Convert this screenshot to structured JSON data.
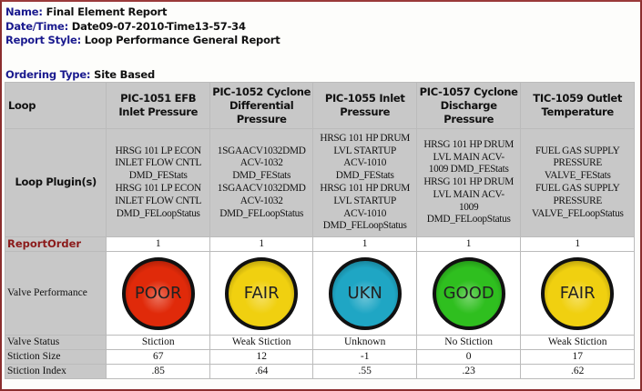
{
  "meta": {
    "name_label": "Name:",
    "name": "Final Element Report",
    "datetime_label": "Date/Time:",
    "datetime": "Date09-07-2010-Time13-57-34",
    "style_label": "Report Style:",
    "style": "Loop Performance General Report",
    "ordering_label": "Ordering Type:",
    "ordering": "Site Based"
  },
  "table": {
    "row_labels": {
      "loop": "Loop",
      "plugins": "Loop Plugin(s)",
      "report_order": "ReportOrder",
      "valve_performance": "Valve Performance",
      "valve_status": "Valve Status",
      "stiction_size": "Stiction Size",
      "stiction_index": "Stiction Index"
    },
    "columns": [
      {
        "loop": "PIC-1051 EFB Inlet Pressure",
        "plugins": "HRSG 101 LP ECON\nINLET FLOW CNTL\nDMD_FEStats\nHRSG 101 LP ECON\nINLET FLOW CNTL\nDMD_FELoopStatus",
        "report_order": "1",
        "performance": "POOR",
        "performance_color": "#e02a0a",
        "valve_status": "Stiction",
        "stiction_size": "67",
        "stiction_index": ".85"
      },
      {
        "loop": "PIC-1052 Cyclone Differential Pressure",
        "plugins": "1SGAACV1032DMD\nACV-1032\nDMD_FEStats\n1SGAACV1032DMD\nACV-1032\nDMD_FELoopStatus",
        "report_order": "1",
        "performance": "FAIR",
        "performance_color": "#f0d010",
        "valve_status": "Weak Stiction",
        "stiction_size": "12",
        "stiction_index": ".64"
      },
      {
        "loop": "PIC-1055 Inlet Pressure",
        "plugins": "HRSG 101 HP DRUM\nLVL STARTUP\nACV-1010\nDMD_FEStats\nHRSG 101 HP DRUM\nLVL STARTUP\nACV-1010\nDMD_FELoopStatus",
        "report_order": "1",
        "performance": "UKN",
        "performance_color": "#1fa6c4",
        "valve_status": "Unknown",
        "stiction_size": "-1",
        "stiction_index": ".55"
      },
      {
        "loop": "PIC-1057 Cyclone Discharge Pressure",
        "plugins": "HRSG 101 HP DRUM\nLVL MAIN ACV-\n1009 DMD_FEStats\nHRSG 101 HP DRUM\nLVL MAIN ACV-\n1009\nDMD_FELoopStatus",
        "report_order": "1",
        "performance": "GOOD",
        "performance_color": "#2fbf1f",
        "valve_status": "No Stiction",
        "stiction_size": "0",
        "stiction_index": ".23"
      },
      {
        "loop": "TIC-1059 Outlet Temperature",
        "plugins": "FUEL GAS SUPPLY\nPRESSURE\nVALVE_FEStats\nFUEL GAS SUPPLY\nPRESSURE\nVALVE_FELoopStatus",
        "report_order": "1",
        "performance": "FAIR",
        "performance_color": "#f0d010",
        "valve_status": "Weak Stiction",
        "stiction_size": "17",
        "stiction_index": ".62"
      }
    ]
  }
}
